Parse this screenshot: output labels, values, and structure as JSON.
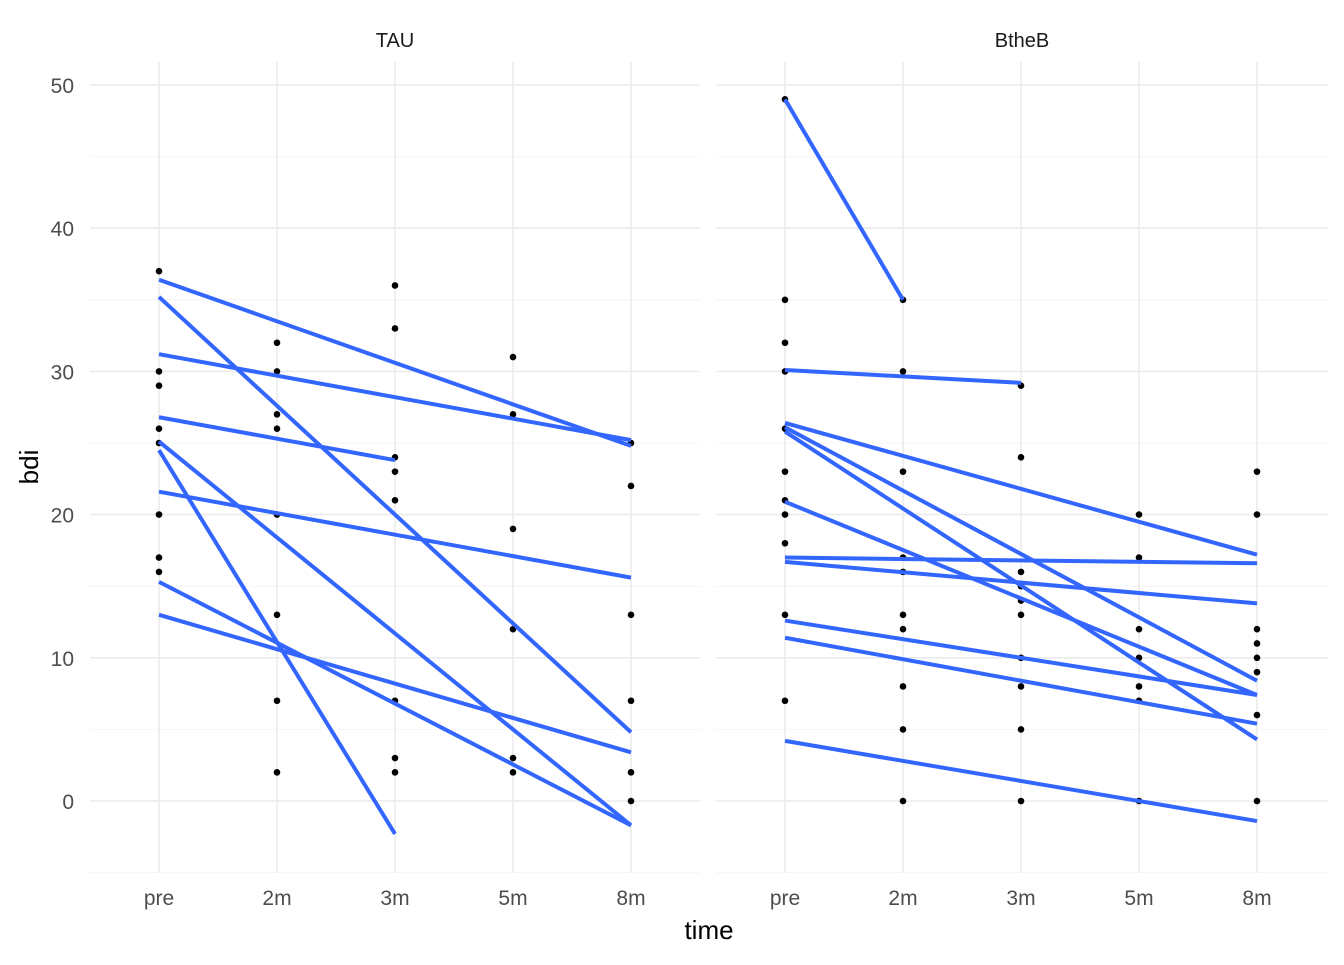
{
  "chart_data": {
    "type": "scatter",
    "xlabel": "time",
    "ylabel": "bdi",
    "x_categories": [
      "pre",
      "2m",
      "3m",
      "5m",
      "8m"
    ],
    "y_ticks": [
      0,
      10,
      20,
      30,
      40,
      50
    ],
    "ylim": [
      -5,
      51
    ],
    "grid": true,
    "colors": {
      "line": "#3366ff",
      "point": "#000000",
      "grid_major": "#ebebeb",
      "grid_minor": "#f4f4f4",
      "tick_label": "#4d4d4d",
      "axis_title": "#000000"
    },
    "facets": [
      {
        "label": "TAU",
        "points": [
          {
            "x": "pre",
            "y": 37
          },
          {
            "x": "pre",
            "y": 30
          },
          {
            "x": "pre",
            "y": 29
          },
          {
            "x": "pre",
            "y": 26
          },
          {
            "x": "pre",
            "y": 25
          },
          {
            "x": "pre",
            "y": 20
          },
          {
            "x": "pre",
            "y": 17
          },
          {
            "x": "pre",
            "y": 16
          },
          {
            "x": "2m",
            "y": 32
          },
          {
            "x": "2m",
            "y": 30
          },
          {
            "x": "2m",
            "y": 27
          },
          {
            "x": "2m",
            "y": 26
          },
          {
            "x": "2m",
            "y": 20
          },
          {
            "x": "2m",
            "y": 13
          },
          {
            "x": "2m",
            "y": 7
          },
          {
            "x": "2m",
            "y": 2
          },
          {
            "x": "3m",
            "y": 36
          },
          {
            "x": "3m",
            "y": 33
          },
          {
            "x": "3m",
            "y": 24
          },
          {
            "x": "3m",
            "y": 23
          },
          {
            "x": "3m",
            "y": 21
          },
          {
            "x": "3m",
            "y": 7
          },
          {
            "x": "3m",
            "y": 3
          },
          {
            "x": "3m",
            "y": 2
          },
          {
            "x": "5m",
            "y": 31
          },
          {
            "x": "5m",
            "y": 27
          },
          {
            "x": "5m",
            "y": 19
          },
          {
            "x": "5m",
            "y": 12
          },
          {
            "x": "5m",
            "y": 3
          },
          {
            "x": "5m",
            "y": 2
          },
          {
            "x": "8m",
            "y": 25
          },
          {
            "x": "8m",
            "y": 22
          },
          {
            "x": "8m",
            "y": 13
          },
          {
            "x": "8m",
            "y": 7
          },
          {
            "x": "8m",
            "y": 2
          },
          {
            "x": "8m",
            "y": 0
          }
        ],
        "fit_lines": [
          {
            "x1": "pre",
            "y1": 36.4,
            "x2": "8m",
            "y2": 24.8
          },
          {
            "x1": "pre",
            "y1": 35.2,
            "x2": "8m",
            "y2": 4.8
          },
          {
            "x1": "pre",
            "y1": 31.2,
            "x2": "8m",
            "y2": 25.2
          },
          {
            "x1": "pre",
            "y1": 26.8,
            "x2": "3m",
            "y2": 23.8
          },
          {
            "x1": "pre",
            "y1": 25.1,
            "x2": "8m",
            "y2": -1.7
          },
          {
            "x1": "pre",
            "y1": 24.5,
            "x2": "3m",
            "y2": -2.3
          },
          {
            "x1": "pre",
            "y1": 21.6,
            "x2": "8m",
            "y2": 15.6
          },
          {
            "x1": "pre",
            "y1": 15.3,
            "x2": "8m",
            "y2": -1.7
          },
          {
            "x1": "pre",
            "y1": 13.0,
            "x2": "8m",
            "y2": 3.4
          }
        ]
      },
      {
        "label": "BtheB",
        "points": [
          {
            "x": "pre",
            "y": 49
          },
          {
            "x": "pre",
            "y": 35
          },
          {
            "x": "pre",
            "y": 32
          },
          {
            "x": "pre",
            "y": 30
          },
          {
            "x": "pre",
            "y": 26
          },
          {
            "x": "pre",
            "y": 23
          },
          {
            "x": "pre",
            "y": 21
          },
          {
            "x": "pre",
            "y": 20
          },
          {
            "x": "pre",
            "y": 18
          },
          {
            "x": "pre",
            "y": 13
          },
          {
            "x": "pre",
            "y": 7
          },
          {
            "x": "2m",
            "y": 35
          },
          {
            "x": "2m",
            "y": 30
          },
          {
            "x": "2m",
            "y": 23
          },
          {
            "x": "2m",
            "y": 17
          },
          {
            "x": "2m",
            "y": 16
          },
          {
            "x": "2m",
            "y": 13
          },
          {
            "x": "2m",
            "y": 12
          },
          {
            "x": "2m",
            "y": 8
          },
          {
            "x": "2m",
            "y": 5
          },
          {
            "x": "2m",
            "y": 0
          },
          {
            "x": "3m",
            "y": 29
          },
          {
            "x": "3m",
            "y": 24
          },
          {
            "x": "3m",
            "y": 16
          },
          {
            "x": "3m",
            "y": 15
          },
          {
            "x": "3m",
            "y": 14
          },
          {
            "x": "3m",
            "y": 13
          },
          {
            "x": "3m",
            "y": 10
          },
          {
            "x": "3m",
            "y": 8
          },
          {
            "x": "3m",
            "y": 5
          },
          {
            "x": "3m",
            "y": 0
          },
          {
            "x": "5m",
            "y": 20
          },
          {
            "x": "5m",
            "y": 17
          },
          {
            "x": "5m",
            "y": 12
          },
          {
            "x": "5m",
            "y": 10
          },
          {
            "x": "5m",
            "y": 8
          },
          {
            "x": "5m",
            "y": 7
          },
          {
            "x": "5m",
            "y": 0
          },
          {
            "x": "8m",
            "y": 23
          },
          {
            "x": "8m",
            "y": 20
          },
          {
            "x": "8m",
            "y": 12
          },
          {
            "x": "8m",
            "y": 11
          },
          {
            "x": "8m",
            "y": 10
          },
          {
            "x": "8m",
            "y": 9
          },
          {
            "x": "8m",
            "y": 6
          },
          {
            "x": "8m",
            "y": 0
          }
        ],
        "fit_lines": [
          {
            "x1": "pre",
            "y1": 49.0,
            "x2": "2m",
            "y2": 35.0
          },
          {
            "x1": "pre",
            "y1": 30.1,
            "x2": "3m",
            "y2": 29.2
          },
          {
            "x1": "pre",
            "y1": 26.4,
            "x2": "8m",
            "y2": 17.2
          },
          {
            "x1": "pre",
            "y1": 26.1,
            "x2": "8m",
            "y2": 8.4
          },
          {
            "x1": "pre",
            "y1": 25.8,
            "x2": "8m",
            "y2": 4.3
          },
          {
            "x1": "pre",
            "y1": 20.9,
            "x2": "8m",
            "y2": 7.4
          },
          {
            "x1": "pre",
            "y1": 17.0,
            "x2": "8m",
            "y2": 16.6
          },
          {
            "x1": "pre",
            "y1": 16.7,
            "x2": "8m",
            "y2": 13.8
          },
          {
            "x1": "pre",
            "y1": 12.6,
            "x2": "8m",
            "y2": 7.4
          },
          {
            "x1": "pre",
            "y1": 11.4,
            "x2": "8m",
            "y2": 5.4
          },
          {
            "x1": "pre",
            "y1": 4.2,
            "x2": "8m",
            "y2": -1.4
          }
        ]
      }
    ]
  }
}
